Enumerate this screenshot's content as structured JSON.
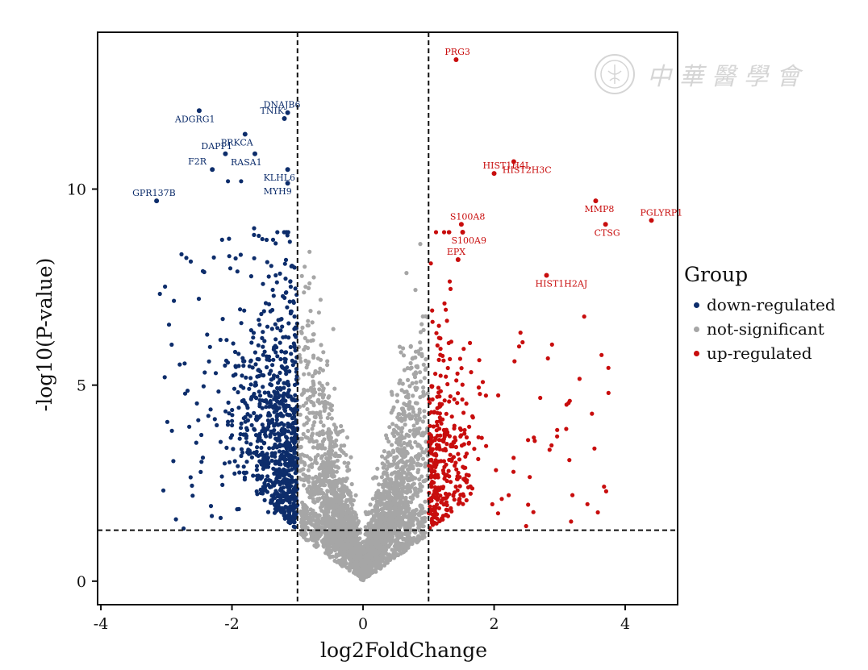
{
  "watermark": {
    "text": "中華醫學會"
  },
  "legend": {
    "title": "Group",
    "items": [
      {
        "label": "down-regulated",
        "color": "#0d2d6b"
      },
      {
        "label": "not-significant",
        "color": "#a6a6a6"
      },
      {
        "label": "up-regulated",
        "color": "#c80d0d"
      }
    ]
  },
  "chart_data": {
    "type": "scatter",
    "title": "",
    "xlabel": "log2FoldChange",
    "ylabel": "-log10(P-value)",
    "xlim": [
      -4.05,
      4.8
    ],
    "ylim": [
      -0.6,
      14.0
    ],
    "x_ticks": [
      -4,
      -2,
      0,
      2,
      4
    ],
    "y_ticks": [
      0,
      5,
      10
    ],
    "thresholds": {
      "fold_change": [
        -1,
        1
      ],
      "p_value": 1.3
    },
    "grid": false,
    "legend_position": "right",
    "colors": {
      "down": "#0d2d6b",
      "ns": "#a6a6a6",
      "up": "#c80d0d"
    },
    "labeled_points": [
      {
        "label": "PRG3",
        "x": 1.42,
        "y": 13.3,
        "group": "up"
      },
      {
        "label": "HIST2H3C",
        "x": 2.3,
        "y": 10.7,
        "group": "up"
      },
      {
        "label": "HIST1H4L",
        "x": 2.0,
        "y": 10.4,
        "group": "up"
      },
      {
        "label": "MMP8",
        "x": 3.55,
        "y": 9.7,
        "group": "up"
      },
      {
        "label": "PGLYRP1",
        "x": 4.4,
        "y": 9.2,
        "group": "up"
      },
      {
        "label": "CTSG",
        "x": 3.7,
        "y": 9.1,
        "group": "up"
      },
      {
        "label": "S100A8",
        "x": 1.5,
        "y": 9.1,
        "group": "up"
      },
      {
        "label": "S100A9",
        "x": 1.52,
        "y": 8.9,
        "group": "up"
      },
      {
        "label": "EPX",
        "x": 1.45,
        "y": 8.2,
        "group": "up"
      },
      {
        "label": "HIST1H2AJ",
        "x": 2.8,
        "y": 7.8,
        "group": "up"
      },
      {
        "label": "TNIK",
        "x": -1.2,
        "y": 11.8,
        "group": "down"
      },
      {
        "label": "ADGRG1",
        "x": -2.5,
        "y": 12.0,
        "group": "down"
      },
      {
        "label": "DNAJB6",
        "x": -1.15,
        "y": 11.95,
        "group": "down"
      },
      {
        "label": "PRKCA",
        "x": -1.8,
        "y": 11.4,
        "group": "down"
      },
      {
        "label": "DAPP1",
        "x": -2.1,
        "y": 10.9,
        "group": "down"
      },
      {
        "label": "RASA1",
        "x": -1.65,
        "y": 10.9,
        "group": "down"
      },
      {
        "label": "F2R",
        "x": -2.3,
        "y": 10.5,
        "group": "down"
      },
      {
        "label": "KLHL6",
        "x": -1.15,
        "y": 10.5,
        "group": "down"
      },
      {
        "label": "GPR137B",
        "x": -3.15,
        "y": 9.7,
        "group": "down"
      },
      {
        "label": "MYH9",
        "x": -1.15,
        "y": 10.15,
        "group": "down"
      }
    ]
  }
}
